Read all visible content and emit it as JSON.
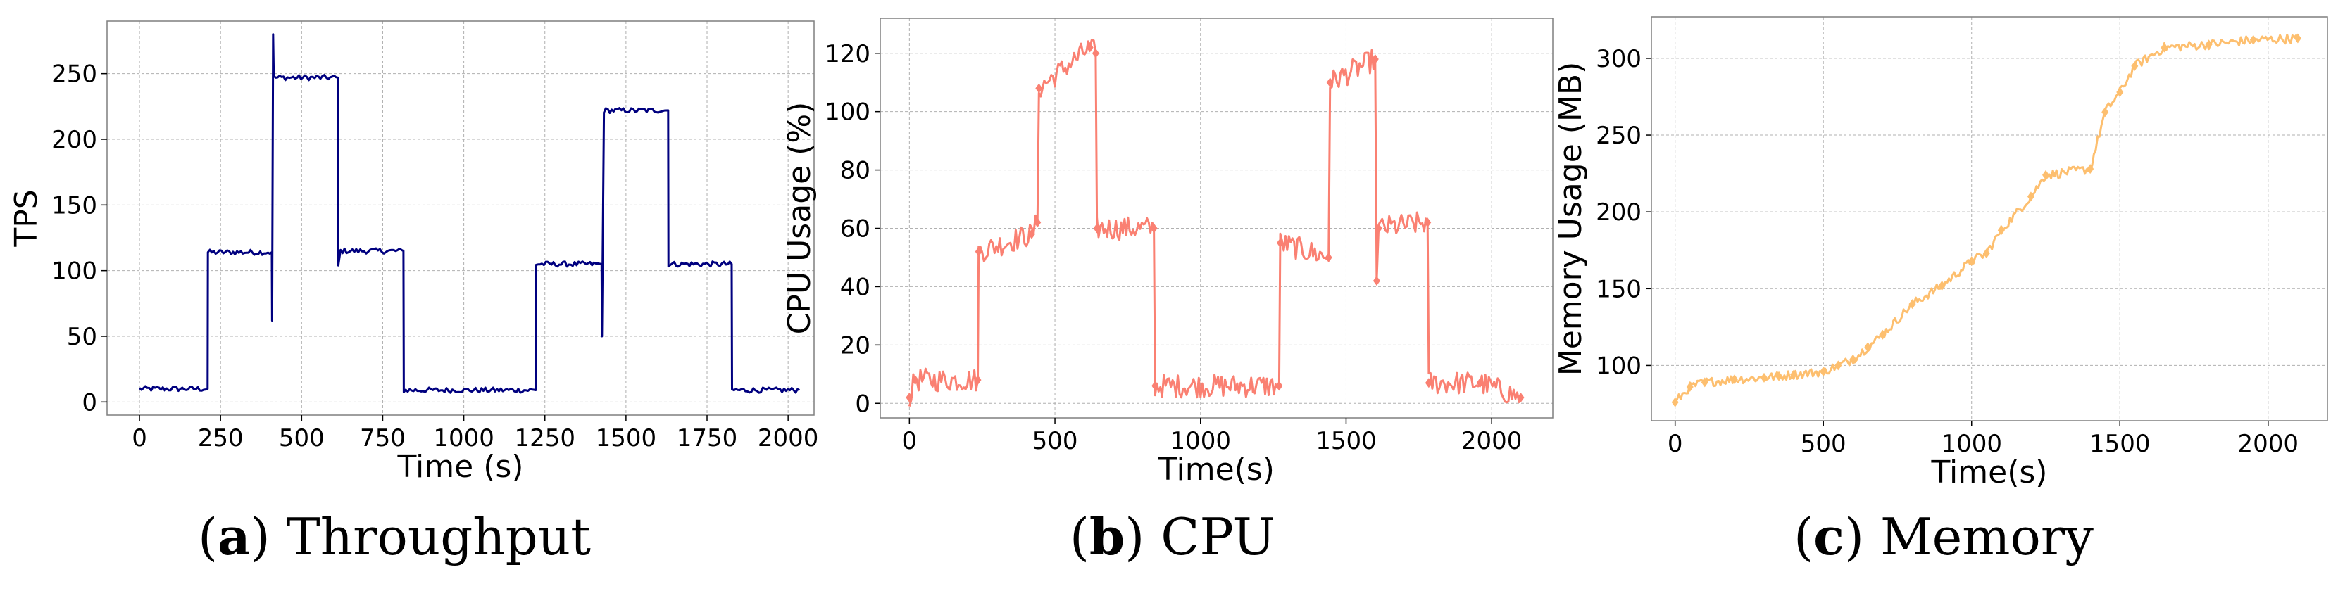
{
  "figure": {
    "captions": [
      {
        "letter": "a",
        "text": "Throughput"
      },
      {
        "letter": "b",
        "text": "CPU"
      },
      {
        "letter": "c",
        "text": "Memory"
      }
    ]
  },
  "chart_data": [
    {
      "type": "line",
      "title": "",
      "xlabel": "Time (s)",
      "ylabel": "TPS",
      "xlim": [
        -100,
        2080
      ],
      "ylim": [
        -10,
        290
      ],
      "xticks": [
        0,
        250,
        500,
        750,
        1000,
        1250,
        1500,
        1750,
        2000
      ],
      "yticks": [
        0,
        50,
        100,
        150,
        200,
        250
      ],
      "grid": true,
      "color": "#00007f",
      "marker": "none",
      "noise": 2,
      "series": [
        {
          "name": "TPS",
          "x": [
            0,
            210,
            211,
            408,
            409,
            412,
            414,
            612,
            613,
            620,
            814,
            815,
            1222,
            1223,
            1425,
            1426,
            1432,
            1630,
            1631,
            1826,
            1827,
            2035
          ],
          "y": [
            10,
            10,
            114,
            114,
            62,
            280,
            247,
            247,
            104,
            115,
            115,
            9,
            9,
            105,
            105,
            50,
            222,
            222,
            105,
            105,
            9,
            9
          ]
        }
      ]
    },
    {
      "type": "line",
      "title": "",
      "xlabel": "Time(s)",
      "ylabel": "CPU Usage (%)",
      "xlim": [
        -100,
        2210
      ],
      "ylim": [
        -5,
        132
      ],
      "xticks": [
        0,
        500,
        1000,
        1500,
        2000
      ],
      "yticks": [
        0,
        20,
        40,
        60,
        80,
        100,
        120
      ],
      "grid": true,
      "color": "#fa8072",
      "marker": "diamond",
      "noise": 4,
      "series": [
        {
          "name": "CPU",
          "x": [
            0,
            20,
            235,
            238,
            420,
            440,
            445,
            620,
            640,
            644,
            840,
            844,
            1270,
            1274,
            1440,
            1445,
            1600,
            1605,
            1612,
            1780,
            1784,
            1960,
            2100
          ],
          "y": [
            2,
            8,
            8,
            52,
            58,
            62,
            108,
            122,
            120,
            60,
            60,
            6,
            6,
            55,
            50,
            110,
            118,
            42,
            60,
            62,
            7,
            7,
            2
          ]
        }
      ]
    },
    {
      "type": "line",
      "title": "",
      "xlabel": "Time(s)",
      "ylabel": "Memory Usage (MB)",
      "xlim": [
        -80,
        2200
      ],
      "ylim": [
        64,
        327
      ],
      "xticks": [
        0,
        500,
        1000,
        1500,
        2000
      ],
      "yticks": [
        100,
        150,
        200,
        250,
        300
      ],
      "grid": true,
      "color": "#fdbf6f",
      "marker": "diamond",
      "noise": 3,
      "series": [
        {
          "name": "Memory",
          "x": [
            0,
            50,
            100,
            200,
            300,
            350,
            400,
            500,
            550,
            600,
            650,
            700,
            800,
            900,
            1000,
            1050,
            1100,
            1200,
            1250,
            1400,
            1450,
            1500,
            1550,
            1650,
            1800,
            1950,
            2100
          ],
          "y": [
            76,
            86,
            89,
            91,
            92,
            93,
            94,
            96,
            100,
            104,
            112,
            120,
            140,
            152,
            168,
            173,
            188,
            210,
            224,
            228,
            265,
            278,
            295,
            307,
            309,
            312,
            313
          ]
        }
      ]
    }
  ]
}
